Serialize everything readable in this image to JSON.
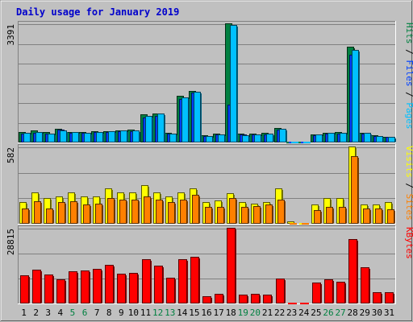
{
  "chart_data": {
    "type": "bar",
    "title": "Daily usage for January 2019",
    "categories": [
      "1",
      "2",
      "3",
      "4",
      "5",
      "6",
      "7",
      "8",
      "9",
      "10",
      "11",
      "12",
      "13",
      "14",
      "15",
      "16",
      "17",
      "18",
      "19",
      "20",
      "21",
      "22",
      "23",
      "24",
      "25",
      "26",
      "27",
      "28",
      "29",
      "30",
      "31"
    ],
    "weekend_days": [
      "5",
      "6",
      "12",
      "13",
      "19",
      "20",
      "26",
      "27"
    ],
    "panels": [
      {
        "ymax": "3391",
        "ymax_value": 3391,
        "legend": [
          {
            "text": "Hits",
            "color": "#008040"
          },
          {
            "text": "Files",
            "color": "#0040ff"
          },
          {
            "text": "Pages",
            "color": "#00c0ff"
          }
        ],
        "separator": " / ",
        "series": [
          {
            "name": "Hits",
            "color": "#008040",
            "values": [
              285,
              315,
              280,
              378,
              285,
              280,
              300,
              305,
              325,
              340,
              778,
              800,
              260,
              1310,
              1460,
              185,
              225,
              3391,
              232,
              232,
              245,
              385,
              5,
              0,
              210,
              265,
              270,
              2715,
              262,
              178,
              145
            ]
          },
          {
            "name": "Files",
            "color": "#0040ff",
            "values": [
              240,
              255,
              225,
              345,
              250,
              245,
              270,
              275,
              290,
              300,
              690,
              740,
              235,
              1230,
              1400,
              160,
              200,
              1070,
              200,
              200,
              210,
              340,
              5,
              0,
              190,
              235,
              240,
              2480,
              240,
              155,
              130
            ]
          },
          {
            "name": "Pages",
            "color": "#00c0ff",
            "values": [
              250,
              280,
              240,
              312,
              270,
              262,
              286,
              300,
              312,
              320,
              730,
              800,
              238,
              1270,
              1430,
              165,
              210,
              3340,
              190,
              200,
              220,
              365,
              0,
              0,
              200,
              250,
              255,
              2640,
              250,
              165,
              130
            ]
          }
        ]
      },
      {
        "ymax": "582",
        "ymax_value": 582,
        "legend": [
          {
            "text": "Visits",
            "color": "#ffff00"
          },
          {
            "text": "Sites",
            "color": "#ff8000"
          }
        ],
        "separator": " / ",
        "series": [
          {
            "name": "Visits",
            "color": "#ffff00",
            "values": [
              160,
              230,
              190,
              200,
              230,
              200,
              200,
              265,
              230,
              235,
              290,
              230,
              200,
              230,
              265,
              160,
              170,
              225,
              160,
              150,
              160,
              265,
              10,
              0,
              140,
              190,
              190,
              582,
              140,
              140,
              160
            ]
          },
          {
            "name": "Sites",
            "color": "#ff8000",
            "values": [
              110,
              165,
              110,
              160,
              165,
              140,
              150,
              190,
              180,
              180,
              200,
              180,
              160,
              180,
              215,
              125,
              125,
              190,
              125,
              130,
              140,
              180,
              0,
              0,
              95,
              120,
              125,
              510,
              110,
              110,
              105
            ]
          }
        ]
      },
      {
        "ymax": "28815",
        "ymax_value": 28815,
        "legend": [
          {
            "text": "KBytes",
            "color": "#ff0000"
          }
        ],
        "separator": "",
        "series": [
          {
            "name": "KBytes",
            "color": "#ff0000",
            "values": [
              10600,
              12600,
              10800,
              8950,
              12000,
              12500,
              13000,
              14500,
              11100,
              11400,
              16800,
              14100,
              9500,
              16800,
              17800,
              2450,
              3450,
              28815,
              3000,
              3450,
              3250,
              9300,
              0,
              0,
              7880,
              9000,
              8000,
              24600,
              13500,
              3950,
              3950
            ]
          }
        ]
      }
    ]
  }
}
